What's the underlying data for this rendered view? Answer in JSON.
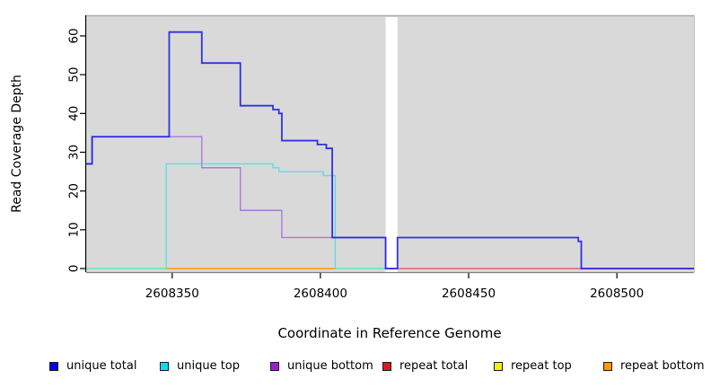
{
  "chart_data": {
    "type": "line",
    "subtype": "step",
    "title": "",
    "xlabel": "Coordinate in Reference Genome",
    "ylabel": "Read Coverage Depth",
    "xlim": [
      2608321,
      2608526
    ],
    "ylim": [
      0,
      66
    ],
    "x_ticks": [
      2608350,
      2608400,
      2608450,
      2608500
    ],
    "y_ticks": [
      0,
      10,
      20,
      30,
      40,
      50,
      60
    ],
    "grid": false,
    "legend_position": "bottom",
    "plot_bg": "#d9d9d9",
    "page_bg": "#ffffff",
    "axis_color": "#000000",
    "gap_band": {
      "x_start": 2608422,
      "x_end": 2608426,
      "color": "#ffffff"
    },
    "series": [
      {
        "name": "unique total",
        "color": "#1414e6",
        "line_width": 1.8,
        "opacity": 0.85,
        "zorder": 6,
        "steps": [
          [
            2608321,
            27
          ],
          [
            2608323,
            34
          ],
          [
            2608349,
            61
          ],
          [
            2608360,
            53
          ],
          [
            2608373,
            42
          ],
          [
            2608384,
            41
          ],
          [
            2608386,
            40
          ],
          [
            2608387,
            33
          ],
          [
            2608399,
            32
          ],
          [
            2608402,
            31
          ],
          [
            2608404,
            8
          ],
          [
            2608422,
            0
          ],
          [
            2608426,
            8
          ],
          [
            2608487,
            7
          ],
          [
            2608488,
            0
          ],
          [
            2608526,
            0
          ]
        ]
      },
      {
        "name": "unique top",
        "color": "#21dde8",
        "line_width": 1.4,
        "opacity": 0.65,
        "zorder": 5,
        "steps": [
          [
            2608321,
            0
          ],
          [
            2608348,
            27
          ],
          [
            2608384,
            26
          ],
          [
            2608386,
            25
          ],
          [
            2608401,
            24
          ],
          [
            2608405,
            0
          ],
          [
            2608422,
            0
          ]
        ]
      },
      {
        "name": "unique bottom",
        "color": "#a05fd6",
        "line_width": 1.4,
        "opacity": 0.8,
        "zorder": 4,
        "steps": [
          [
            2608321,
            27
          ],
          [
            2608323,
            34
          ],
          [
            2608360,
            26
          ],
          [
            2608373,
            15
          ],
          [
            2608387,
            8
          ],
          [
            2608404,
            8
          ],
          [
            2608422,
            0
          ],
          [
            2608426,
            0
          ]
        ]
      },
      {
        "name": "repeat total",
        "color": "#ee2233",
        "line_width": 1.2,
        "opacity": 0.8,
        "zorder": 3,
        "steps": [
          [
            2608426,
            0
          ],
          [
            2608526,
            0
          ]
        ]
      },
      {
        "name": "repeat top",
        "color": "#eded55",
        "line_width": 1.2,
        "opacity": 0.9,
        "zorder": 1,
        "steps": [
          [
            2608321,
            0
          ],
          [
            2608422,
            0
          ]
        ]
      },
      {
        "name": "repeat bottom",
        "color": "#ff9900",
        "line_width": 1.5,
        "opacity": 1,
        "zorder": 2,
        "steps": [
          [
            2608348,
            0
          ],
          [
            2608405,
            0
          ]
        ]
      }
    ],
    "legend": {
      "items": [
        {
          "label": "unique total",
          "color": "#0000ee"
        },
        {
          "label": "unique top",
          "color": "#00e1ea"
        },
        {
          "label": "unique bottom",
          "color": "#991fd6"
        },
        {
          "label": "repeat total",
          "color": "#ee1122"
        },
        {
          "label": "repeat top",
          "color": "#f2f200"
        },
        {
          "label": "repeat bottom",
          "color": "#ff9900"
        }
      ]
    }
  }
}
